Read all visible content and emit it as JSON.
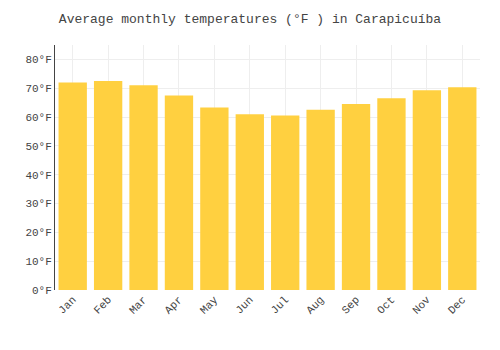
{
  "chart_data": {
    "type": "bar",
    "title": "Average monthly temperatures (°F ) in Carapicuíba",
    "categories": [
      "Jan",
      "Feb",
      "Mar",
      "Apr",
      "May",
      "Jun",
      "Jul",
      "Aug",
      "Sep",
      "Oct",
      "Nov",
      "Dec"
    ],
    "values": [
      72,
      72.5,
      71,
      67.5,
      63.3,
      61,
      60.5,
      62.5,
      64.5,
      66.5,
      69.3,
      70.3
    ],
    "color": "#FFD040",
    "ylim": [
      0,
      85
    ],
    "yticks": [
      {
        "value": 0,
        "label": "0°F"
      },
      {
        "value": 10,
        "label": "10°F"
      },
      {
        "value": 20,
        "label": "20°F"
      },
      {
        "value": 30,
        "label": "30°F"
      },
      {
        "value": 40,
        "label": "40°F"
      },
      {
        "value": 50,
        "label": "50°F"
      },
      {
        "value": 60,
        "label": "60°F"
      },
      {
        "value": 70,
        "label": "70°F"
      },
      {
        "value": 80,
        "label": "80°F"
      }
    ],
    "grid": true
  }
}
